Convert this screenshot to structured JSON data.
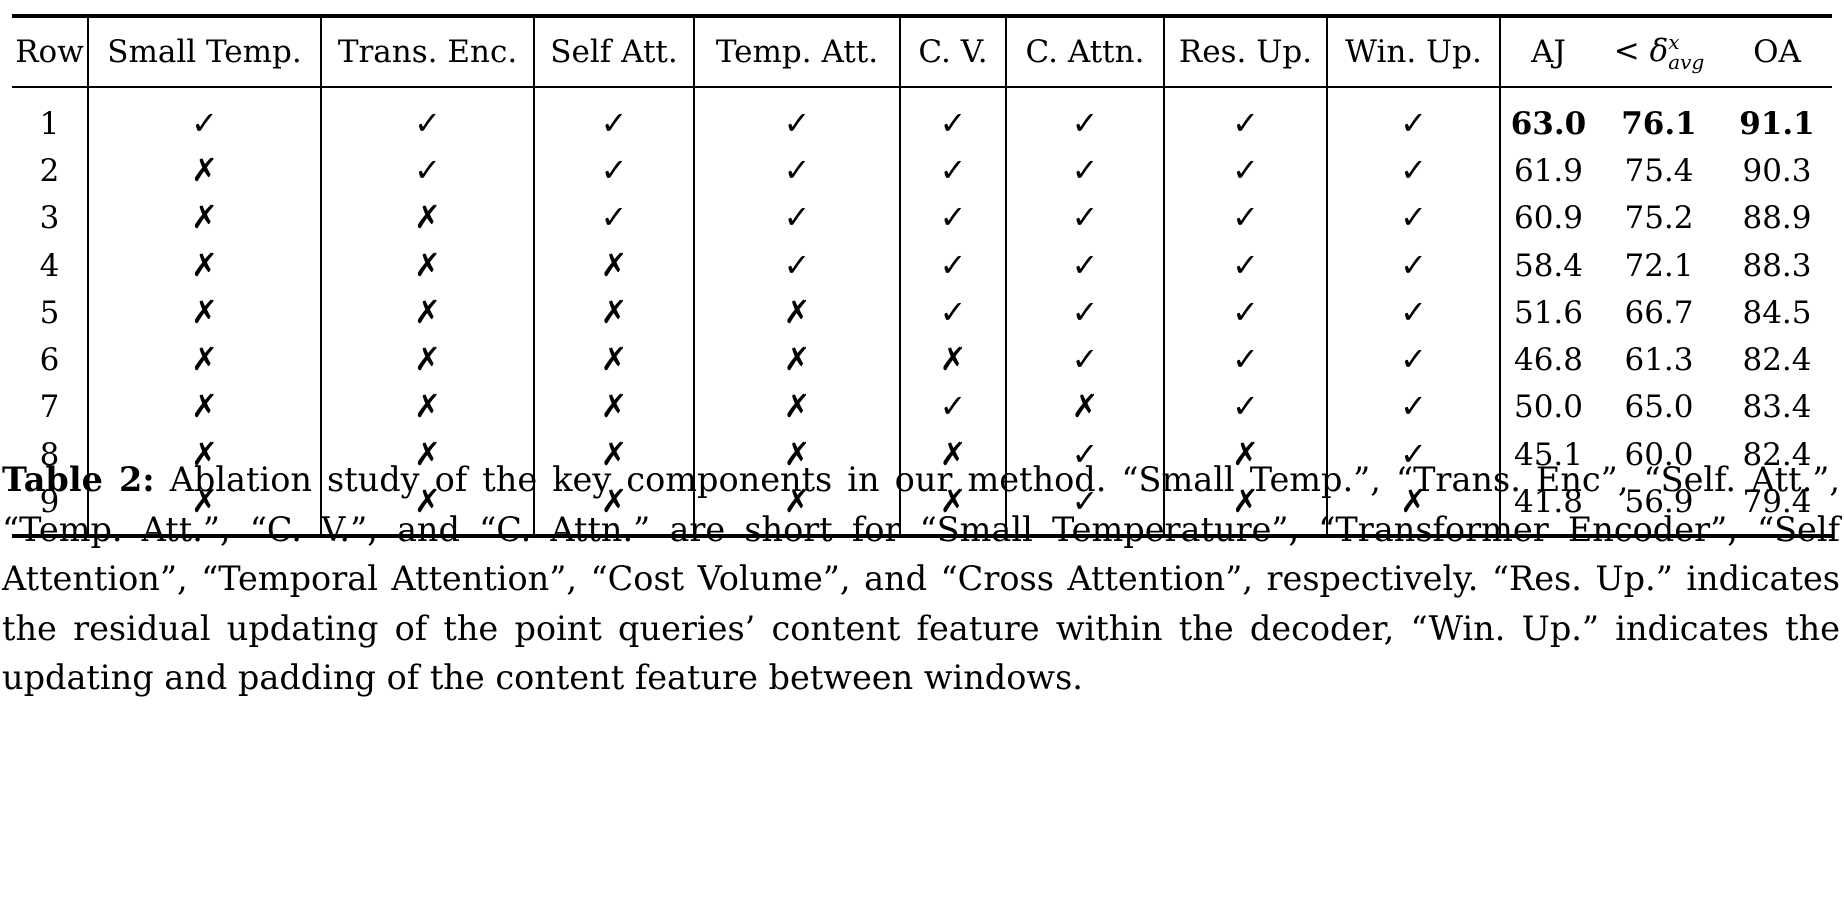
{
  "table": {
    "headers": {
      "row": "Row",
      "small_temp": "Small Temp.",
      "trans_enc": "Trans. Enc.",
      "self_att": "Self Att.",
      "temp_att": "Temp. Att.",
      "cv": "C. V.",
      "c_attn": "C. Attn.",
      "res_up": "Res. Up.",
      "win_up": "Win. Up.",
      "aj": "AJ",
      "delta_lt": "<",
      "delta_sym": "δ",
      "delta_sup": "x",
      "delta_sub": "avg",
      "oa": "OA"
    },
    "mark_symbols": {
      "check": "✓",
      "cross": "✗"
    },
    "rows": [
      {
        "row": "1",
        "marks": [
          "check",
          "check",
          "check",
          "check",
          "check",
          "check",
          "check",
          "check"
        ],
        "aj": "63.0",
        "delta": "76.1",
        "oa": "91.1",
        "best": true
      },
      {
        "row": "2",
        "marks": [
          "cross",
          "check",
          "check",
          "check",
          "check",
          "check",
          "check",
          "check"
        ],
        "aj": "61.9",
        "delta": "75.4",
        "oa": "90.3",
        "best": false
      },
      {
        "row": "3",
        "marks": [
          "cross",
          "cross",
          "check",
          "check",
          "check",
          "check",
          "check",
          "check"
        ],
        "aj": "60.9",
        "delta": "75.2",
        "oa": "88.9",
        "best": false
      },
      {
        "row": "4",
        "marks": [
          "cross",
          "cross",
          "cross",
          "check",
          "check",
          "check",
          "check",
          "check"
        ],
        "aj": "58.4",
        "delta": "72.1",
        "oa": "88.3",
        "best": false
      },
      {
        "row": "5",
        "marks": [
          "cross",
          "cross",
          "cross",
          "cross",
          "check",
          "check",
          "check",
          "check"
        ],
        "aj": "51.6",
        "delta": "66.7",
        "oa": "84.5",
        "best": false
      },
      {
        "row": "6",
        "marks": [
          "cross",
          "cross",
          "cross",
          "cross",
          "cross",
          "check",
          "check",
          "check"
        ],
        "aj": "46.8",
        "delta": "61.3",
        "oa": "82.4",
        "best": false
      },
      {
        "row": "7",
        "marks": [
          "cross",
          "cross",
          "cross",
          "cross",
          "check",
          "cross",
          "check",
          "check"
        ],
        "aj": "50.0",
        "delta": "65.0",
        "oa": "83.4",
        "best": false
      },
      {
        "row": "8",
        "marks": [
          "cross",
          "cross",
          "cross",
          "cross",
          "cross",
          "check",
          "cross",
          "check"
        ],
        "aj": "45.1",
        "delta": "60.0",
        "oa": "82.4",
        "best": false
      },
      {
        "row": "9",
        "marks": [
          "cross",
          "cross",
          "cross",
          "cross",
          "cross",
          "check",
          "cross",
          "cross"
        ],
        "aj": "41.8",
        "delta": "56.9",
        "oa": "79.4",
        "best": false
      }
    ]
  },
  "caption": {
    "label": "Table 2:",
    "text": "Ablation study of the key components in our method. “Small Temp.”, “Trans. Enc”, “Self. Att.”, “Temp. Att.”, “C. V.”, and “C. Attn.” are short for “Small Temperature”, “Transformer Encoder”, “Self Attention”, “Temporal Attention”, “Cost Volume”, and “Cross Attention”, respectively. “Res. Up.” indicates the residual updating of the point queries’ content feature within the decoder, “Win. Up.” indicates the updating and padding of the content feature between windows."
  }
}
